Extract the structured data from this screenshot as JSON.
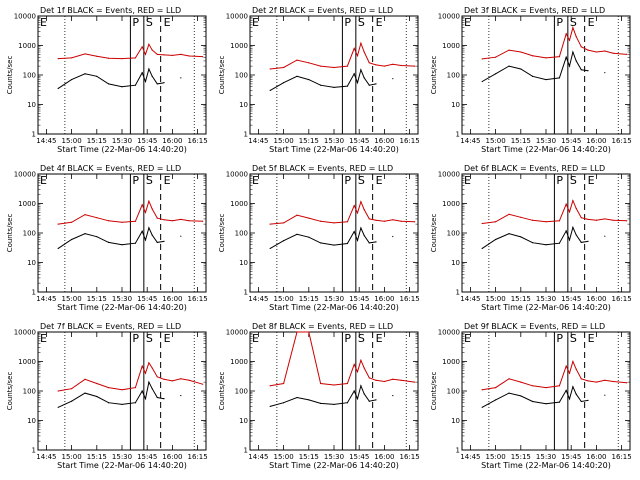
{
  "figure": {
    "x_axis_title": "Start Time (22-Mar-06 14:40:20)",
    "y_axis_title": "Counts/sec",
    "x_ticks": [
      "14:45",
      "15:00",
      "15:15",
      "15:30",
      "15:45",
      "16:00",
      "16:15"
    ],
    "y_ticks": [
      "1",
      "10",
      "100",
      "1000",
      "10000"
    ],
    "markers": {
      "pre": "P",
      "start": "S",
      "end": "E"
    },
    "colors": {
      "events": "#000000",
      "lld": "#cc0000"
    }
  },
  "chart_data": [
    {
      "type": "line",
      "title": "Det 1f BLACK = Events, RED = LLD",
      "xlabel": "Start Time (22-Mar-06 14:40:20)",
      "ylabel": "Counts/sec",
      "ylog": true,
      "ylim": [
        1,
        10000
      ],
      "xlim": [
        "14:40",
        "16:20"
      ],
      "x": [
        "14:52",
        "15:00",
        "15:08",
        "15:15",
        "15:22",
        "15:30",
        "15:38",
        "15:42",
        "15:44",
        "15:46",
        "15:48",
        "15:51",
        "15:55",
        "16:00",
        "16:05",
        "16:10",
        "16:18"
      ],
      "series": [
        {
          "name": "Events",
          "values": [
            35,
            70,
            110,
            90,
            50,
            40,
            45,
            120,
            60,
            160,
            90,
            50,
            55,
            null,
            80,
            null,
            null
          ]
        },
        {
          "name": "LLD",
          "values": [
            360,
            380,
            520,
            430,
            370,
            360,
            380,
            900,
            500,
            1100,
            700,
            500,
            480,
            460,
            500,
            440,
            420
          ]
        }
      ],
      "markers_x": {
        "P": "15:35",
        "S": "15:43",
        "E": "15:53"
      }
    },
    {
      "type": "line",
      "title": "Det 2f BLACK = Events, RED = LLD",
      "xlabel": "Start Time (22-Mar-06 14:40:20)",
      "ylabel": "Counts/sec",
      "ylog": true,
      "ylim": [
        1,
        10000
      ],
      "xlim": [
        "14:40",
        "16:20"
      ],
      "x": [
        "14:52",
        "15:00",
        "15:08",
        "15:15",
        "15:22",
        "15:30",
        "15:38",
        "15:42",
        "15:44",
        "15:46",
        "15:48",
        "15:51",
        "15:55",
        "16:00",
        "16:05",
        "16:10",
        "16:18"
      ],
      "series": [
        {
          "name": "Events",
          "values": [
            30,
            55,
            90,
            70,
            45,
            38,
            42,
            110,
            55,
            150,
            80,
            45,
            50,
            null,
            75,
            null,
            null
          ]
        },
        {
          "name": "LLD",
          "values": [
            160,
            180,
            320,
            260,
            200,
            180,
            200,
            800,
            450,
            1200,
            600,
            260,
            220,
            200,
            230,
            210,
            200
          ]
        }
      ],
      "markers_x": {
        "P": "15:35",
        "S": "15:43",
        "E": "15:53"
      }
    },
    {
      "type": "line",
      "title": "Det 3f BLACK = Events, RED = LLD",
      "xlabel": "Start Time (22-Mar-06 14:40:20)",
      "ylabel": "Counts/sec",
      "ylog": true,
      "ylim": [
        1,
        10000
      ],
      "xlim": [
        "14:40",
        "16:20"
      ],
      "x": [
        "14:52",
        "15:00",
        "15:08",
        "15:15",
        "15:22",
        "15:30",
        "15:38",
        "15:42",
        "15:44",
        "15:46",
        "15:48",
        "15:51",
        "15:55",
        "16:00",
        "16:05",
        "16:10",
        "16:18"
      ],
      "series": [
        {
          "name": "Events",
          "values": [
            60,
            110,
            200,
            160,
            90,
            70,
            80,
            400,
            200,
            600,
            300,
            150,
            140,
            null,
            120,
            null,
            null
          ]
        },
        {
          "name": "LLD",
          "values": [
            350,
            400,
            700,
            600,
            450,
            380,
            420,
            2500,
            1500,
            4000,
            2000,
            900,
            700,
            600,
            650,
            550,
            500
          ]
        }
      ],
      "markers_x": {
        "P": "15:35",
        "S": "15:43",
        "E": "15:53"
      }
    },
    {
      "type": "line",
      "title": "Det 4f BLACK = Events, RED = LLD",
      "xlabel": "Start Time (22-Mar-06 14:40:20)",
      "ylabel": "Counts/sec",
      "ylog": true,
      "ylim": [
        1,
        10000
      ],
      "xlim": [
        "14:40",
        "16:20"
      ],
      "x": [
        "14:52",
        "15:00",
        "15:08",
        "15:15",
        "15:22",
        "15:30",
        "15:38",
        "15:42",
        "15:44",
        "15:46",
        "15:48",
        "15:51",
        "15:55",
        "16:00",
        "16:05",
        "16:10",
        "16:18"
      ],
      "series": [
        {
          "name": "Events",
          "values": [
            30,
            60,
            95,
            75,
            48,
            40,
            45,
            115,
            58,
            150,
            85,
            48,
            52,
            null,
            78,
            null,
            null
          ]
        },
        {
          "name": "LLD",
          "values": [
            200,
            230,
            420,
            330,
            260,
            230,
            250,
            900,
            500,
            1200,
            650,
            320,
            280,
            260,
            290,
            260,
            250
          ]
        }
      ],
      "markers_x": {
        "P": "15:35",
        "S": "15:43",
        "E": "15:53"
      }
    },
    {
      "type": "line",
      "title": "Det 5f BLACK = Events, RED = LLD",
      "xlabel": "Start Time (22-Mar-06 14:40:20)",
      "ylabel": "Counts/sec",
      "ylog": true,
      "ylim": [
        1,
        10000
      ],
      "xlim": [
        "14:40",
        "16:20"
      ],
      "x": [
        "14:52",
        "15:00",
        "15:08",
        "15:15",
        "15:22",
        "15:30",
        "15:38",
        "15:42",
        "15:44",
        "15:46",
        "15:48",
        "15:51",
        "15:55",
        "16:00",
        "16:05",
        "16:10",
        "16:18"
      ],
      "series": [
        {
          "name": "Events",
          "values": [
            30,
            55,
            90,
            72,
            46,
            39,
            44,
            112,
            56,
            148,
            82,
            46,
            50,
            null,
            76,
            null,
            null
          ]
        },
        {
          "name": "LLD",
          "values": [
            200,
            220,
            400,
            320,
            250,
            220,
            240,
            850,
            480,
            1150,
            620,
            300,
            270,
            250,
            280,
            250,
            240
          ]
        }
      ],
      "markers_x": {
        "P": "15:35",
        "S": "15:43",
        "E": "15:53"
      }
    },
    {
      "type": "line",
      "title": "Det 6f BLACK = Events, RED = LLD",
      "xlabel": "Start Time (22-Mar-06 14:40:20)",
      "ylabel": "Counts/sec",
      "ylog": true,
      "ylim": [
        1,
        10000
      ],
      "xlim": [
        "14:40",
        "16:20"
      ],
      "x": [
        "14:52",
        "15:00",
        "15:08",
        "15:15",
        "15:22",
        "15:30",
        "15:38",
        "15:42",
        "15:44",
        "15:46",
        "15:48",
        "15:51",
        "15:55",
        "16:00",
        "16:05",
        "16:10",
        "16:18"
      ],
      "series": [
        {
          "name": "Events",
          "values": [
            30,
            60,
            95,
            74,
            47,
            40,
            45,
            118,
            58,
            155,
            86,
            48,
            52,
            null,
            78,
            null,
            null
          ]
        },
        {
          "name": "LLD",
          "values": [
            210,
            240,
            430,
            340,
            270,
            240,
            260,
            950,
            520,
            1250,
            680,
            330,
            290,
            270,
            300,
            270,
            260
          ]
        }
      ],
      "markers_x": {
        "P": "15:35",
        "S": "15:43",
        "E": "15:53"
      }
    },
    {
      "type": "line",
      "title": "Det 7f BLACK = Events, RED = LLD",
      "xlabel": "Start Time (22-Mar-06 14:40:20)",
      "ylabel": "Counts/sec",
      "ylog": true,
      "ylim": [
        1,
        10000
      ],
      "xlim": [
        "14:40",
        "16:20"
      ],
      "x": [
        "14:52",
        "15:00",
        "15:08",
        "15:15",
        "15:22",
        "15:30",
        "15:38",
        "15:42",
        "15:44",
        "15:46",
        "15:48",
        "15:51",
        "15:55",
        "16:00",
        "16:05",
        "16:10",
        "16:18"
      ],
      "series": [
        {
          "name": "Events",
          "values": [
            28,
            45,
            85,
            65,
            40,
            35,
            40,
            100,
            55,
            200,
            120,
            60,
            55,
            null,
            70,
            null,
            null
          ]
        },
        {
          "name": "LLD",
          "values": [
            100,
            120,
            250,
            180,
            130,
            110,
            130,
            700,
            400,
            900,
            600,
            300,
            250,
            220,
            260,
            230,
            170
          ]
        }
      ],
      "markers_x": {
        "P": "15:35",
        "S": "15:43",
        "E": "15:53"
      }
    },
    {
      "type": "line",
      "title": "Det 8f BLACK = Events, RED = LLD",
      "xlabel": "Start Time (22-Mar-06 14:40:20)",
      "ylabel": "Counts/sec",
      "ylog": true,
      "ylim": [
        1,
        10000
      ],
      "xlim": [
        "14:40",
        "16:20"
      ],
      "x": [
        "14:52",
        "15:00",
        "15:08",
        "15:15",
        "15:22",
        "15:30",
        "15:38",
        "15:42",
        "15:44",
        "15:46",
        "15:48",
        "15:51",
        "15:55",
        "16:00",
        "16:05",
        "16:10",
        "16:18"
      ],
      "series": [
        {
          "name": "Events",
          "values": [
            30,
            40,
            60,
            50,
            38,
            35,
            40,
            100,
            55,
            150,
            80,
            45,
            50,
            null,
            70,
            null,
            null
          ]
        },
        {
          "name": "LLD",
          "values": [
            150,
            180,
            10000,
            10000,
            180,
            160,
            180,
            800,
            450,
            1100,
            600,
            280,
            230,
            210,
            250,
            230,
            200
          ]
        }
      ],
      "markers_x": {
        "P": "15:35",
        "S": "15:43",
        "E": "15:53"
      }
    },
    {
      "type": "line",
      "title": "Det 9f BLACK = Events, RED = LLD",
      "xlabel": "Start Time (22-Mar-06 14:40:20)",
      "ylabel": "Counts/sec",
      "ylog": true,
      "ylim": [
        1,
        10000
      ],
      "xlim": [
        "14:40",
        "16:20"
      ],
      "x": [
        "14:52",
        "15:00",
        "15:08",
        "15:15",
        "15:22",
        "15:30",
        "15:38",
        "15:42",
        "15:44",
        "15:46",
        "15:48",
        "15:51",
        "15:55",
        "16:00",
        "16:05",
        "16:10",
        "16:18"
      ],
      "series": [
        {
          "name": "Events",
          "values": [
            28,
            50,
            85,
            68,
            44,
            37,
            42,
            105,
            54,
            140,
            78,
            44,
            48,
            null,
            72,
            null,
            null
          ]
        },
        {
          "name": "LLD",
          "values": [
            110,
            130,
            260,
            200,
            150,
            130,
            150,
            700,
            400,
            1000,
            550,
            260,
            220,
            200,
            230,
            210,
            190
          ]
        }
      ],
      "markers_x": {
        "P": "15:35",
        "S": "15:43",
        "E": "15:53"
      }
    }
  ]
}
